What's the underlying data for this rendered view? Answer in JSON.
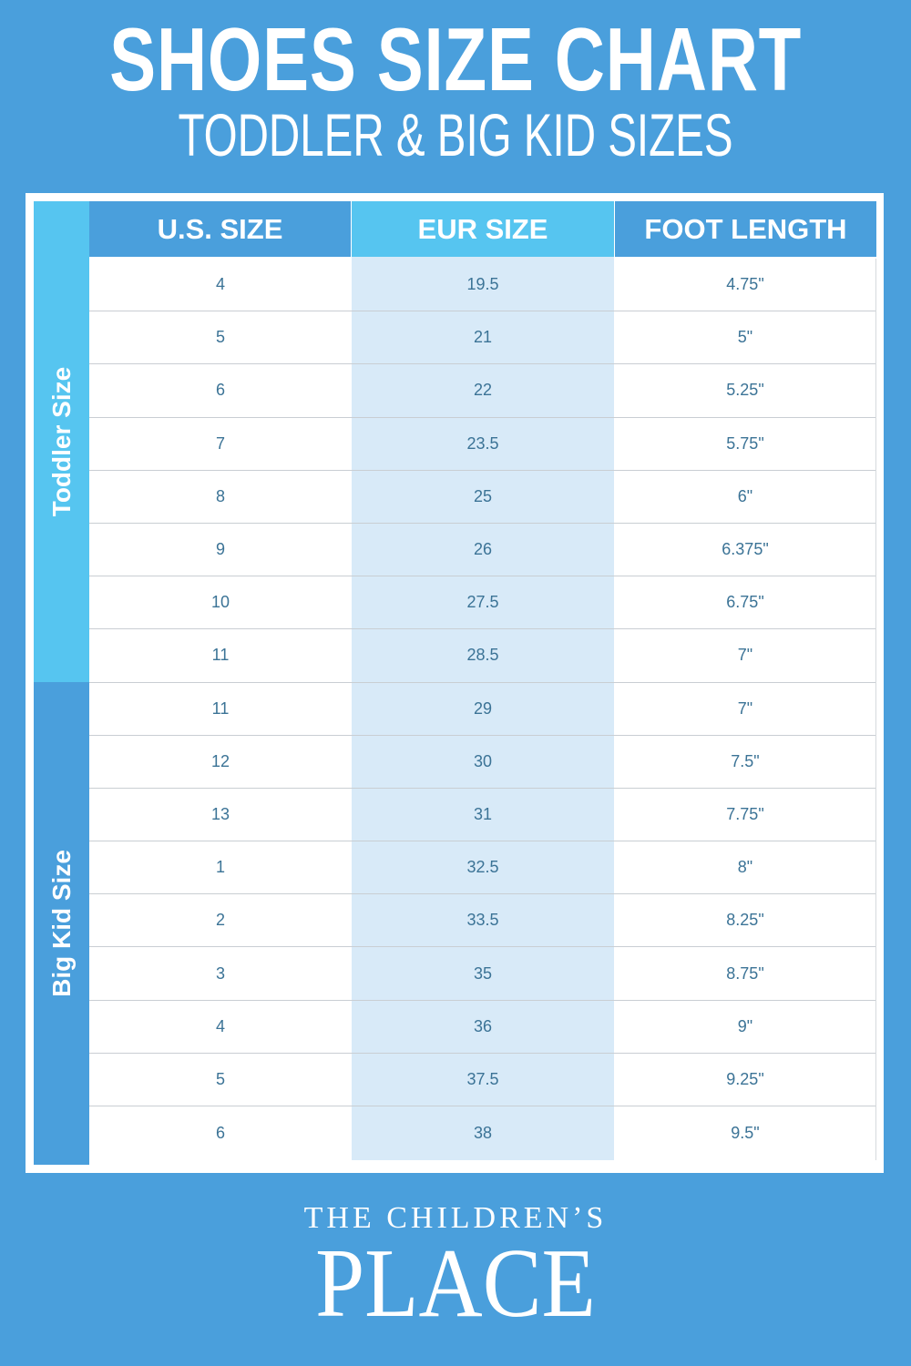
{
  "header": {
    "title": "SHOES SIZE CHART",
    "subtitle": "TODDLER & BIG KID SIZES"
  },
  "colors": {
    "background": "#4a9fdc",
    "toddler_band": "#56c5f0",
    "eur_column": "#d8eaf8",
    "cell_text": "#3b7396"
  },
  "table": {
    "columns": [
      "U.S. SIZE",
      "EUR SIZE",
      "FOOT LENGTH"
    ],
    "groups": [
      "Toddler Size",
      "Big Kid Size"
    ],
    "rows": [
      [
        "4",
        "19.5",
        "4.75\""
      ],
      [
        "5",
        "21",
        "5\""
      ],
      [
        "6",
        "22",
        "5.25\""
      ],
      [
        "7",
        "23.5",
        "5.75\""
      ],
      [
        "8",
        "25",
        "6\""
      ],
      [
        "9",
        "26",
        "6.375\""
      ],
      [
        "10",
        "27.5",
        "6.75\""
      ],
      [
        "11",
        "28.5",
        "7\""
      ],
      [
        "11",
        "29",
        "7\""
      ],
      [
        "12",
        "30",
        "7.5\""
      ],
      [
        "13",
        "31",
        "7.75\""
      ],
      [
        "1",
        "32.5",
        "8\""
      ],
      [
        "2",
        "33.5",
        "8.25\""
      ],
      [
        "3",
        "35",
        "8.75\""
      ],
      [
        "4",
        "36",
        "9\""
      ],
      [
        "5",
        "37.5",
        "9.25\""
      ],
      [
        "6",
        "38",
        "9.5\""
      ]
    ]
  },
  "logo": {
    "line1": "THE CHILDREN’S",
    "line2": "PLACE"
  }
}
